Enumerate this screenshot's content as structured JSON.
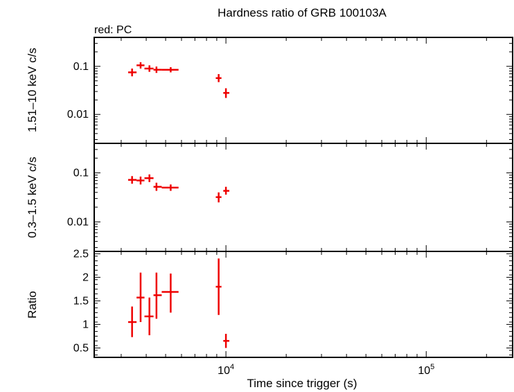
{
  "chart_data": [
    {
      "type": "scatter",
      "title": "Hardness ratio of GRB 100103A",
      "note": "red: PC",
      "ylabel": "1.51–10 keV c/s",
      "yscale": "log",
      "ylim": [
        0.0025,
        0.4
      ],
      "yticks": [
        0.01,
        0.1
      ],
      "ytick_labels": [
        "0.01",
        "0.1"
      ],
      "series": [
        {
          "color": "#ee0000",
          "points": [
            {
              "x": 3400,
              "xlo": 3250,
              "xhi": 3580,
              "y": 0.075,
              "ylo": 0.062,
              "yhi": 0.09
            },
            {
              "x": 3750,
              "xlo": 3580,
              "xhi": 3920,
              "y": 0.105,
              "ylo": 0.09,
              "yhi": 0.122
            },
            {
              "x": 4150,
              "xlo": 3920,
              "xhi": 4350,
              "y": 0.09,
              "ylo": 0.077,
              "yhi": 0.105
            },
            {
              "x": 4500,
              "xlo": 4350,
              "xhi": 4780,
              "y": 0.085,
              "ylo": 0.073,
              "yhi": 0.099
            },
            {
              "x": 5300,
              "xlo": 4780,
              "xhi": 5800,
              "y": 0.085,
              "ylo": 0.075,
              "yhi": 0.096
            },
            {
              "x": 9200,
              "xlo": 8900,
              "xhi": 9500,
              "y": 0.057,
              "ylo": 0.047,
              "yhi": 0.069
            },
            {
              "x": 10000,
              "xlo": 9700,
              "xhi": 10400,
              "y": 0.028,
              "ylo": 0.022,
              "yhi": 0.035
            }
          ]
        }
      ]
    },
    {
      "type": "scatter",
      "ylabel": "0.3–1.5 keV c/s",
      "yscale": "log",
      "ylim": [
        0.0025,
        0.4
      ],
      "yticks": [
        0.01,
        0.1
      ],
      "ytick_labels": [
        "0.01",
        "0.1"
      ],
      "series": [
        {
          "color": "#ee0000",
          "points": [
            {
              "x": 3400,
              "xlo": 3250,
              "xhi": 3580,
              "y": 0.072,
              "ylo": 0.06,
              "yhi": 0.086
            },
            {
              "x": 3750,
              "xlo": 3580,
              "xhi": 3920,
              "y": 0.07,
              "ylo": 0.058,
              "yhi": 0.084
            },
            {
              "x": 4150,
              "xlo": 3920,
              "xhi": 4350,
              "y": 0.078,
              "ylo": 0.065,
              "yhi": 0.093
            },
            {
              "x": 4500,
              "xlo": 4350,
              "xhi": 4780,
              "y": 0.052,
              "ylo": 0.043,
              "yhi": 0.063
            },
            {
              "x": 5300,
              "xlo": 4780,
              "xhi": 5800,
              "y": 0.05,
              "ylo": 0.043,
              "yhi": 0.058
            },
            {
              "x": 9200,
              "xlo": 8900,
              "xhi": 9500,
              "y": 0.032,
              "ylo": 0.025,
              "yhi": 0.04
            },
            {
              "x": 10000,
              "xlo": 9700,
              "xhi": 10400,
              "y": 0.043,
              "ylo": 0.036,
              "yhi": 0.052
            }
          ]
        }
      ]
    },
    {
      "type": "scatter",
      "ylabel": "Ratio",
      "xlabel": "Time since trigger (s)",
      "xscale": "log",
      "xlim": [
        2200,
        270000
      ],
      "xticks": [
        10000,
        100000
      ],
      "xtick_labels": [
        {
          "base": "10",
          "exp": "4"
        },
        {
          "base": "10",
          "exp": "5"
        }
      ],
      "yscale": "linear",
      "ylim": [
        0.3,
        2.55
      ],
      "yticks": [
        0.5,
        1,
        1.5,
        2,
        2.5
      ],
      "ytick_labels": [
        "0.5",
        "1",
        "1.5",
        "2",
        "2.5"
      ],
      "series": [
        {
          "color": "#ee0000",
          "points": [
            {
              "x": 3400,
              "xlo": 3250,
              "xhi": 3580,
              "y": 1.05,
              "ylo": 0.73,
              "yhi": 1.38
            },
            {
              "x": 3750,
              "xlo": 3580,
              "xhi": 3920,
              "y": 1.57,
              "ylo": 1.05,
              "yhi": 2.1
            },
            {
              "x": 4150,
              "xlo": 3920,
              "xhi": 4350,
              "y": 1.17,
              "ylo": 0.77,
              "yhi": 1.57
            },
            {
              "x": 4500,
              "xlo": 4350,
              "xhi": 4780,
              "y": 1.62,
              "ylo": 1.12,
              "yhi": 2.1
            },
            {
              "x": 5300,
              "xlo": 4780,
              "xhi": 5800,
              "y": 1.69,
              "ylo": 1.25,
              "yhi": 2.08
            },
            {
              "x": 9200,
              "xlo": 8900,
              "xhi": 9500,
              "y": 1.8,
              "ylo": 1.2,
              "yhi": 2.4
            },
            {
              "x": 10000,
              "xlo": 9700,
              "xhi": 10400,
              "y": 0.65,
              "ylo": 0.5,
              "yhi": 0.8
            }
          ]
        }
      ]
    }
  ]
}
